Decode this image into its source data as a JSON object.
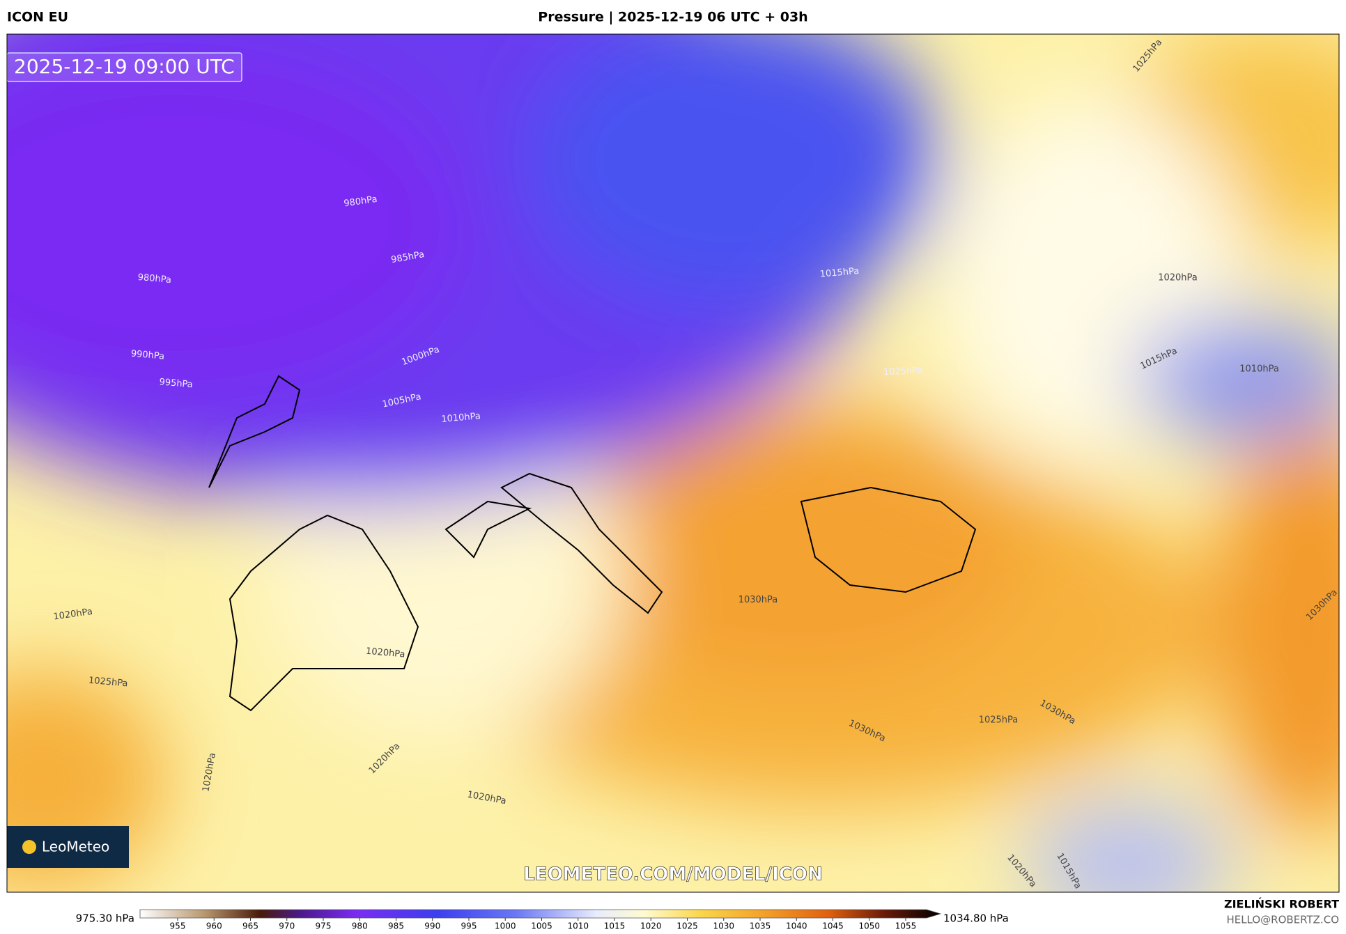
{
  "header": {
    "model": "ICON EU",
    "title": "Pressure | 2025-12-19 06 UTC + 03h"
  },
  "map": {
    "timestamp": "2025-12-19 09:00 UTC",
    "logo": "LeoMeteo",
    "watermark": "LEOMETEO.COM/MODEL/ICON",
    "isobar_labels": [
      "980hPa",
      "985hPa",
      "980hPa",
      "990hPa",
      "995hPa",
      "1000hPa",
      "1005hPa",
      "1010hPa",
      "1015hPa",
      "1020hPa",
      "1015hPa",
      "1010hPa",
      "1025hPa",
      "1030hPa",
      "1020hPa",
      "1020hPa",
      "1025hPa",
      "1025hPa",
      "1030hPa",
      "1030hPa",
      "1020hPa",
      "1020hPa",
      "1020hPa",
      "1025hPa",
      "1030hPa",
      "1020hPa",
      "1015hPa"
    ]
  },
  "colorbar": {
    "min_label": "975.30 hPa",
    "max_label": "1034.80 hPa",
    "ticks": [
      955,
      960,
      965,
      970,
      975,
      980,
      985,
      990,
      995,
      1000,
      1005,
      1010,
      1015,
      1020,
      1025,
      1030,
      1035,
      1040,
      1045,
      1050,
      1055
    ]
  },
  "footer": {
    "author": "ZIELIŃSKI ROBERT",
    "email": "HELLO@ROBERTZ.CO"
  }
}
